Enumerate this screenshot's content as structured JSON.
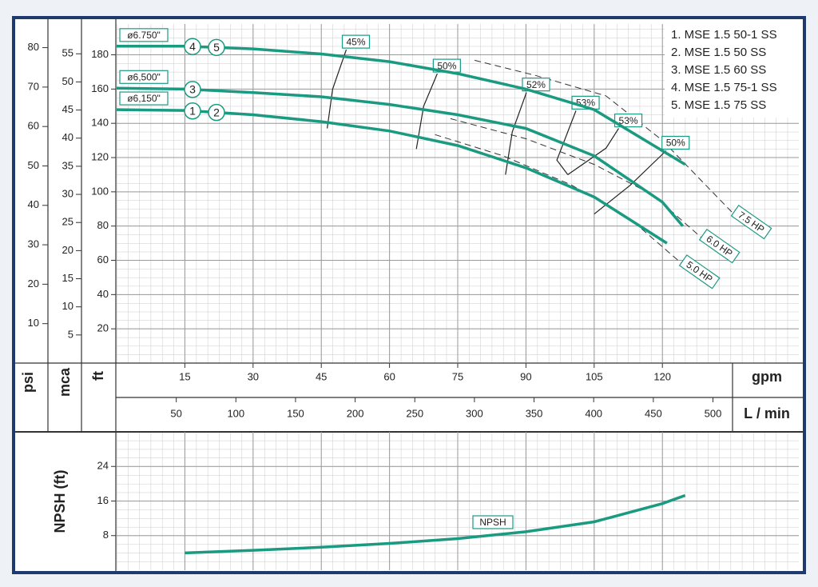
{
  "chart_data": [
    {
      "type": "line",
      "x_label": "gpm",
      "x2_label": "L / min",
      "y_label": "ft",
      "y2_label": "psi",
      "y3_label": "mca",
      "xlim": [
        0,
        150
      ],
      "xticks": [
        15,
        30,
        45,
        60,
        75,
        90,
        105,
        120
      ],
      "x2lim": [
        0,
        572
      ],
      "x2ticks": [
        50,
        100,
        150,
        200,
        250,
        300,
        350,
        400,
        450,
        500
      ],
      "ylim": [
        0,
        198
      ],
      "yticks": [
        20,
        40,
        60,
        80,
        100,
        120,
        140,
        160,
        180
      ],
      "y2lim": [
        0,
        86
      ],
      "y2ticks": [
        10,
        20,
        30,
        40,
        50,
        60,
        70,
        80
      ],
      "y3lim": [
        0,
        60.3
      ],
      "y3ticks": [
        5,
        10,
        15,
        20,
        25,
        30,
        35,
        40,
        45,
        50,
        55
      ],
      "grid": true,
      "legend": [
        "1. MSE 1.5 50-1 SS",
        "2. MSE 1.5 50 SS",
        "3. MSE 1.5 60 SS",
        "4. MSE 1.5 75-1 SS",
        "5. MSE 1.5 75 SS"
      ],
      "series": [
        {
          "name": "ø6.750\"",
          "color": "#1b9a82",
          "markers": [
            "4",
            "5"
          ],
          "x": [
            0,
            15,
            30,
            45,
            60,
            75,
            90,
            105,
            120,
            125
          ],
          "values": [
            185,
            185,
            183.5,
            180.5,
            176,
            169,
            160,
            148,
            124,
            116
          ]
        },
        {
          "name": "ø6,500\"",
          "color": "#1b9a82",
          "markers": [
            "3"
          ],
          "x": [
            0,
            15,
            30,
            45,
            60,
            75,
            90,
            105,
            120,
            124.5
          ],
          "values": [
            160.5,
            160,
            158,
            155.5,
            151,
            145,
            137,
            121,
            94,
            80
          ]
        },
        {
          "name": "ø6,150\"",
          "color": "#1b9a82",
          "markers": [
            "1",
            "2"
          ],
          "x": [
            0,
            15,
            30,
            45,
            60,
            75,
            90,
            105,
            121
          ],
          "values": [
            148,
            147.5,
            145,
            141,
            135.5,
            127,
            114,
            97,
            70
          ]
        }
      ],
      "efficiency_lines": [
        {
          "label": "45%",
          "x": [
            46.3,
            47.5,
            50.5
          ],
          "y": [
            137,
            160,
            183
          ]
        },
        {
          "label": "50%",
          "x": [
            65.9,
            67.5,
            70.5
          ],
          "y": [
            125,
            150,
            169
          ]
        },
        {
          "label": "52%",
          "x": [
            85.5,
            87,
            90.1
          ],
          "y": [
            110,
            135,
            158
          ]
        },
        {
          "label": "53%",
          "x": [
            99.2,
            96.8,
            101
          ],
          "y": [
            110,
            118.5,
            147.4
          ]
        },
        {
          "label": "53%",
          "x": [
            99.2,
            107.6,
            110.4
          ],
          "y": [
            110,
            125.5,
            137
          ]
        },
        {
          "label": "50%",
          "x": [
            105,
            113,
            120.8
          ],
          "y": [
            87,
            104,
            124
          ]
        }
      ],
      "power_lines": [
        {
          "label": "7.5 HP",
          "x": [
            78.7,
            92,
            107.6,
            120,
            135.7
          ],
          "y": [
            176.8,
            168,
            156,
            130,
            87
          ]
        },
        {
          "label": "6.0 HP",
          "x": [
            73.4,
            90,
            105,
            118,
            128.7
          ],
          "y": [
            142.7,
            131,
            116,
            98,
            73
          ]
        },
        {
          "label": "5.0 HP",
          "x": [
            70,
            85,
            100,
            113,
            124.3
          ],
          "y": [
            133.4,
            121,
            104,
            84,
            58
          ]
        }
      ]
    },
    {
      "type": "line",
      "y_label": "NPSH (ft)",
      "xlim": [
        0,
        150
      ],
      "ylim": [
        0,
        32
      ],
      "yticks": [
        8,
        16,
        24
      ],
      "grid": true,
      "series": [
        {
          "name": "NPSH",
          "color": "#1b9a82",
          "x": [
            15,
            30,
            45,
            60,
            75,
            90,
            105,
            120,
            125
          ],
          "values": [
            4,
            4.6,
            5.3,
            6.2,
            7.3,
            8.9,
            11.2,
            15.4,
            17.3
          ]
        }
      ]
    }
  ]
}
